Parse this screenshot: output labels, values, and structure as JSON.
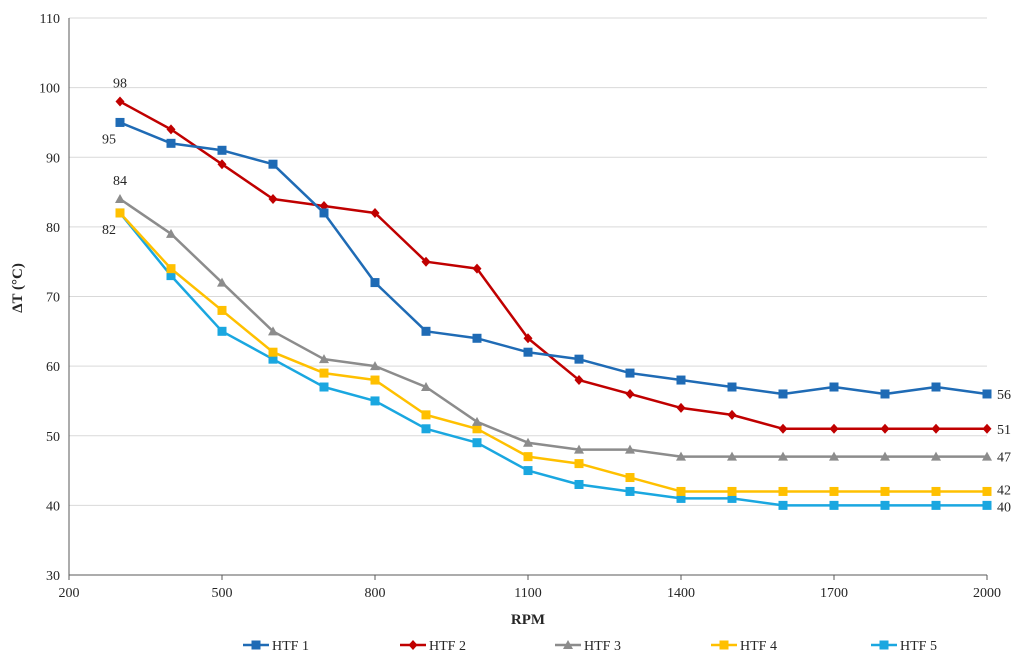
{
  "chart_data": {
    "type": "line",
    "title": "",
    "xlabel": "RPM",
    "ylabel": "ΔT (°C)",
    "xlim": [
      200,
      2000
    ],
    "ylim": [
      30,
      110
    ],
    "x_ticks": [
      200,
      500,
      800,
      1100,
      1400,
      1700,
      2000
    ],
    "y_ticks": [
      30,
      40,
      50,
      60,
      70,
      80,
      90,
      100,
      110
    ],
    "grid": "horizontal",
    "legend_position": "bottom",
    "x": [
      300,
      400,
      500,
      600,
      700,
      800,
      900,
      1000,
      1100,
      1200,
      1300,
      1400,
      1500,
      1600,
      1700,
      1800,
      1900,
      2000
    ],
    "series": [
      {
        "name": "HTF 1",
        "color": "#1f6bb5",
        "marker": "square",
        "values": [
          95,
          92,
          91,
          89,
          82,
          72,
          65,
          64,
          62,
          61,
          59,
          58,
          57,
          56,
          57,
          56,
          57,
          56
        ]
      },
      {
        "name": "HTF 2",
        "color": "#c00000",
        "marker": "diamond",
        "values": [
          98,
          94,
          89,
          84,
          83,
          82,
          75,
          74,
          64,
          58,
          56,
          54,
          53,
          51,
          51,
          51,
          51,
          51
        ]
      },
      {
        "name": "HTF 3",
        "color": "#8c8c8c",
        "marker": "triangle",
        "values": [
          84,
          79,
          72,
          65,
          61,
          60,
          57,
          52,
          49,
          48,
          48,
          47,
          47,
          47,
          47,
          47,
          47,
          47
        ]
      },
      {
        "name": "HTF 4",
        "color": "#ffc000",
        "marker": "square",
        "values": [
          82,
          74,
          68,
          62,
          59,
          58,
          53,
          51,
          47,
          46,
          44,
          42,
          42,
          42,
          42,
          42,
          42,
          42
        ]
      },
      {
        "name": "HTF 5",
        "color": "#1aa7e0",
        "marker": "square",
        "values": [
          82,
          73,
          65,
          61,
          57,
          55,
          51,
          49,
          45,
          43,
          42,
          41,
          41,
          40,
          40,
          40,
          40,
          40
        ]
      }
    ],
    "annotations": [
      {
        "text": "98",
        "x": 300,
        "y": 98,
        "series": "HTF 2",
        "anchor": "above"
      },
      {
        "text": "95",
        "x": 300,
        "y": 95,
        "series": "HTF 1",
        "anchor": "below-left"
      },
      {
        "text": "84",
        "x": 300,
        "y": 84,
        "series": "HTF 3",
        "anchor": "above"
      },
      {
        "text": "82",
        "x": 300,
        "y": 82,
        "series": "HTF 4",
        "anchor": "below-left"
      },
      {
        "text": "56",
        "x": 2000,
        "y": 56,
        "series": "HTF 1",
        "anchor": "right"
      },
      {
        "text": "51",
        "x": 2000,
        "y": 51,
        "series": "HTF 2",
        "anchor": "right"
      },
      {
        "text": "47",
        "x": 2000,
        "y": 47,
        "series": "HTF 3",
        "anchor": "right"
      },
      {
        "text": "42",
        "x": 2000,
        "y": 42,
        "series": "HTF 4",
        "anchor": "right-up"
      },
      {
        "text": "40",
        "x": 2000,
        "y": 40,
        "series": "HTF 5",
        "anchor": "right-down"
      }
    ]
  }
}
